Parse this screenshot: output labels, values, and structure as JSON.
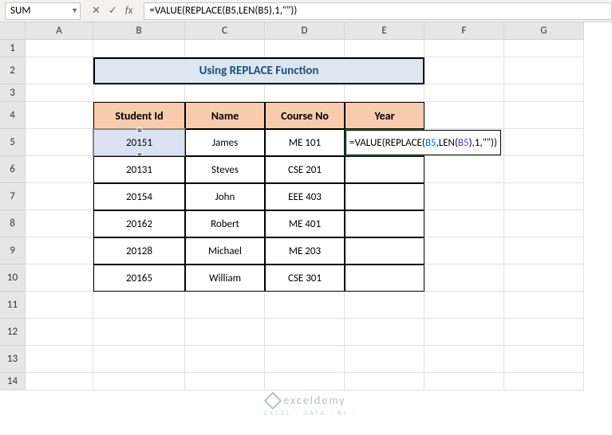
{
  "nameBox": "SUM",
  "formulaBar": "=VALUE(REPLACE(B5,LEN(B5),1,\"\"))",
  "columns": [
    "A",
    "B",
    "C",
    "D",
    "E",
    "F",
    "G"
  ],
  "rows": [
    "1",
    "2",
    "3",
    "4",
    "5",
    "6",
    "7",
    "8",
    "9",
    "10",
    "11",
    "12",
    "13",
    "14"
  ],
  "title": "Using REPLACE Function",
  "headers": {
    "b": "Student Id",
    "c": "Name",
    "d": "Course No",
    "e": "Year"
  },
  "table": [
    {
      "id": "20151",
      "name": "James",
      "course": "ME 101"
    },
    {
      "id": "20131",
      "name": "Steves",
      "course": "CSE 201"
    },
    {
      "id": "20154",
      "name": "John",
      "course": "EEE 403"
    },
    {
      "id": "20162",
      "name": "Robert",
      "course": "ME 401"
    },
    {
      "id": "20128",
      "name": "Michael",
      "course": "ME 203"
    },
    {
      "id": "20165",
      "name": "William",
      "course": "CSE 301"
    }
  ],
  "formulaParts": {
    "p1": "=VALUE(REPLACE(",
    "p2": "B5",
    "p3": ",LEN(",
    "p4": "B5",
    "p5": "),1,\"\"))"
  },
  "watermark": "exceldemy",
  "watermarkSub": "· EXCEL · DATA · BI ·",
  "colors": {
    "titleBg": "#dce6f1",
    "headerBg": "#f8cbad",
    "activeBg": "#d9e1f2"
  }
}
